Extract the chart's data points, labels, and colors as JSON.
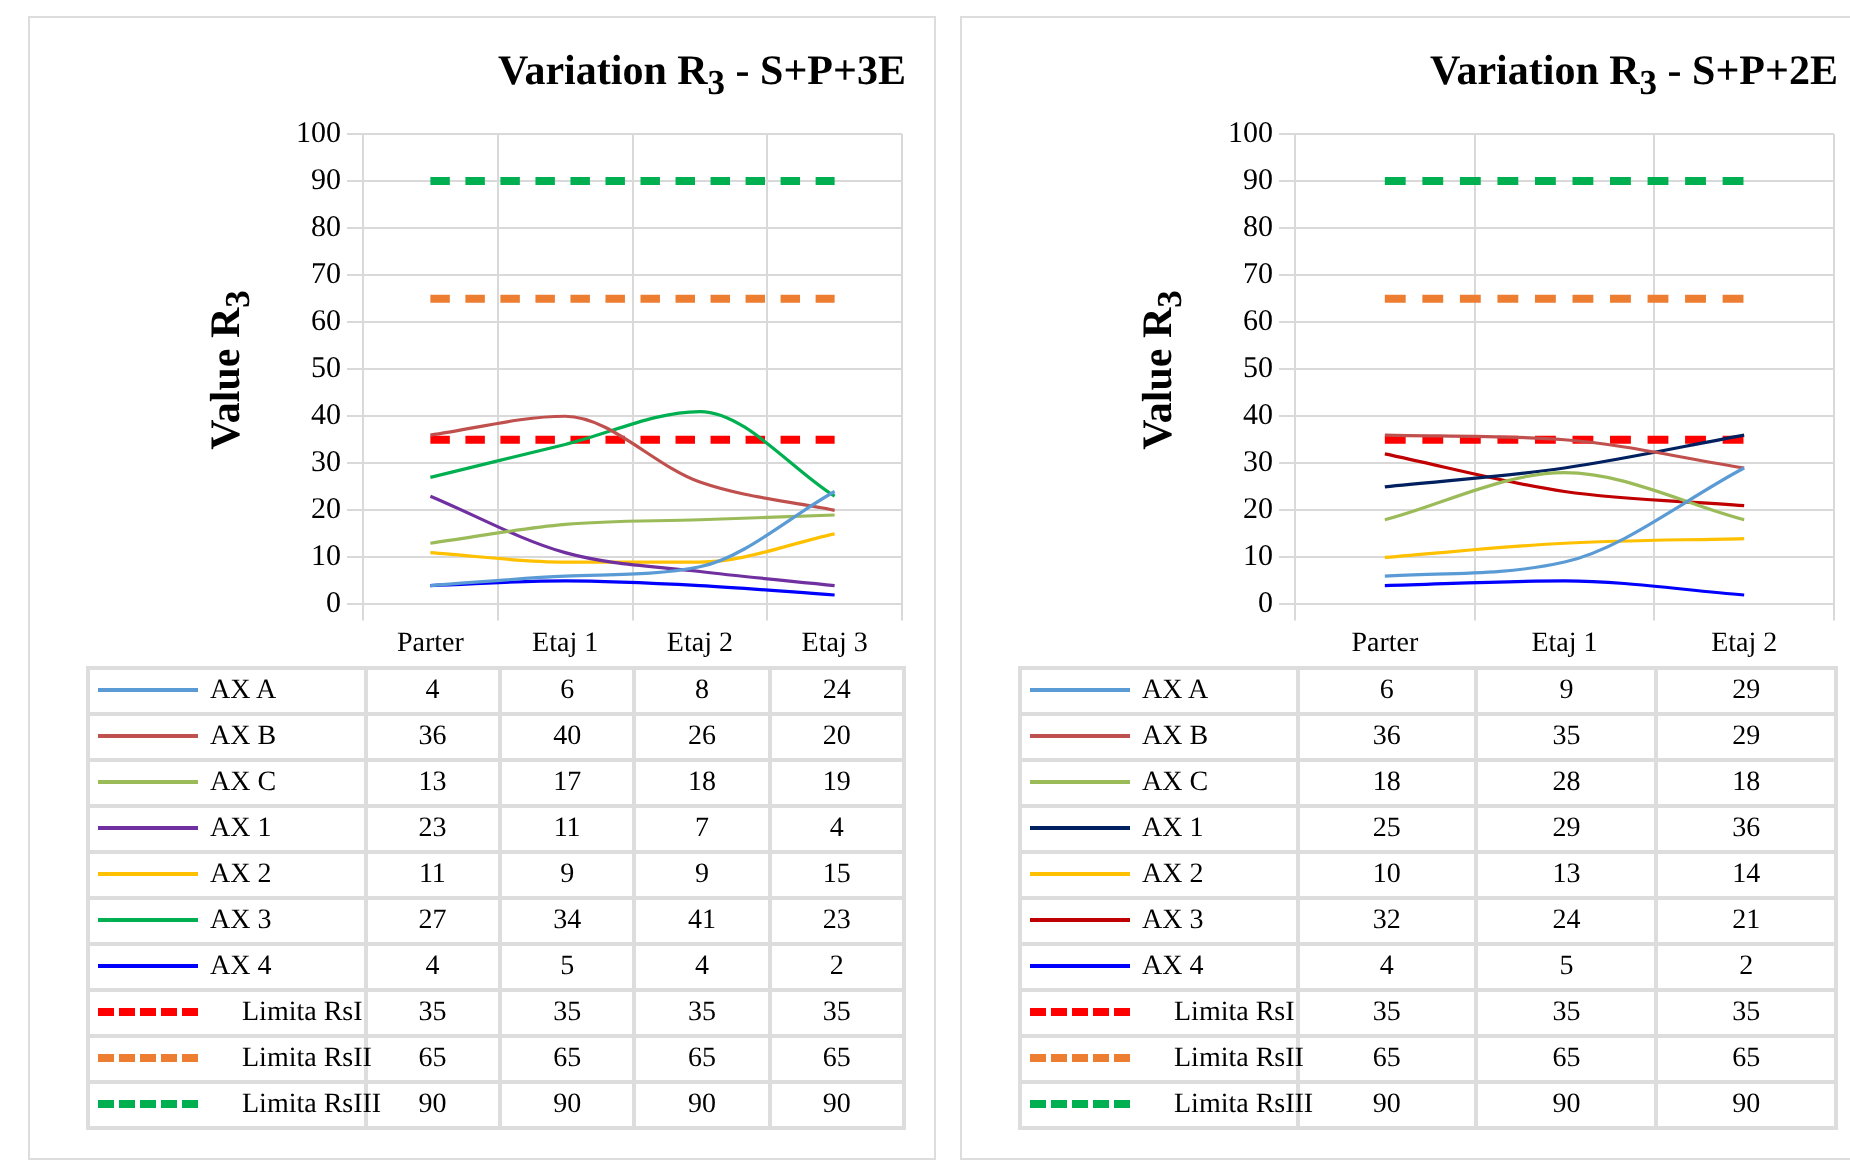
{
  "chart_data": [
    {
      "type": "line",
      "title": "Variation R$_{3}$ - S+P+3E",
      "ylabel": "Value R$_{3}$",
      "categories": [
        "Parter",
        "Etaj 1",
        "Etaj 2",
        "Etaj 3"
      ],
      "ylim": [
        0,
        100
      ],
      "yticks": [
        0,
        10,
        20,
        30,
        40,
        50,
        60,
        70,
        80,
        90,
        100
      ],
      "grid": true,
      "legend": "bottom",
      "data_labels": true,
      "marker": "none",
      "series": [
        {
          "name": "AX A",
          "color": "#5b9bd5",
          "values": [
            4,
            6,
            8,
            24
          ]
        },
        {
          "name": "AX B",
          "color": "#c0504d",
          "values": [
            36,
            40,
            26,
            20
          ]
        },
        {
          "name": "AX C",
          "color": "#9bbb59",
          "values": [
            13,
            17,
            18,
            19
          ]
        },
        {
          "name": "AX 1",
          "color": "#7030a0",
          "values": [
            23,
            11,
            7,
            4
          ]
        },
        {
          "name": "AX 2",
          "color": "#ffc000",
          "values": [
            11,
            9,
            9,
            15
          ]
        },
        {
          "name": "AX 3",
          "color": "#00b050",
          "values": [
            27,
            34,
            41,
            23
          ]
        },
        {
          "name": "AX 4",
          "color": "#0000ff",
          "values": [
            4,
            5,
            4,
            2
          ]
        },
        {
          "name": "Limita RsI",
          "color": "#ff0000",
          "values": [
            35,
            35,
            35,
            35
          ],
          "line_style": "dashed"
        },
        {
          "name": "Limita RsII",
          "color": "#ed7d31",
          "values": [
            65,
            65,
            65,
            65
          ],
          "line_style": "dashed"
        },
        {
          "name": "Limita RsIII",
          "color": "#00b050",
          "values": [
            90,
            90,
            90,
            90
          ],
          "line_style": "dashed"
        }
      ]
    },
    {
      "type": "line",
      "title": "Variation R$_{3}$ - S+P+2E",
      "ylabel": "Value R$_{3}$",
      "categories": [
        "Parter",
        "Etaj 1",
        "Etaj 2"
      ],
      "ylim": [
        0,
        100
      ],
      "yticks": [
        0,
        10,
        20,
        30,
        40,
        50,
        60,
        70,
        80,
        90,
        100
      ],
      "grid": true,
      "legend": "bottom",
      "data_labels": true,
      "marker": "none",
      "series": [
        {
          "name": "AX A",
          "color": "#5b9bd5",
          "values": [
            6,
            9,
            29
          ]
        },
        {
          "name": "AX B",
          "color": "#c0504d",
          "values": [
            36,
            35,
            29
          ]
        },
        {
          "name": "AX C",
          "color": "#9bbb59",
          "values": [
            18,
            28,
            18
          ]
        },
        {
          "name": "AX 1",
          "color": "#002060",
          "values": [
            25,
            29,
            36
          ]
        },
        {
          "name": "AX 2",
          "color": "#ffc000",
          "values": [
            10,
            13,
            14
          ]
        },
        {
          "name": "AX 3",
          "color": "#c00000",
          "values": [
            32,
            24,
            21
          ]
        },
        {
          "name": "AX 4",
          "color": "#0000ff",
          "values": [
            4,
            5,
            2
          ]
        },
        {
          "name": "Limita RsI",
          "color": "#ff0000",
          "values": [
            35,
            35,
            35
          ],
          "line_style": "dashed"
        },
        {
          "name": "Limita RsII",
          "color": "#ed7d31",
          "values": [
            65,
            65,
            65
          ],
          "line_style": "dashed"
        },
        {
          "name": "Limita RsIII",
          "color": "#00b050",
          "values": [
            90,
            90,
            90
          ],
          "line_style": "dashed"
        }
      ]
    }
  ]
}
